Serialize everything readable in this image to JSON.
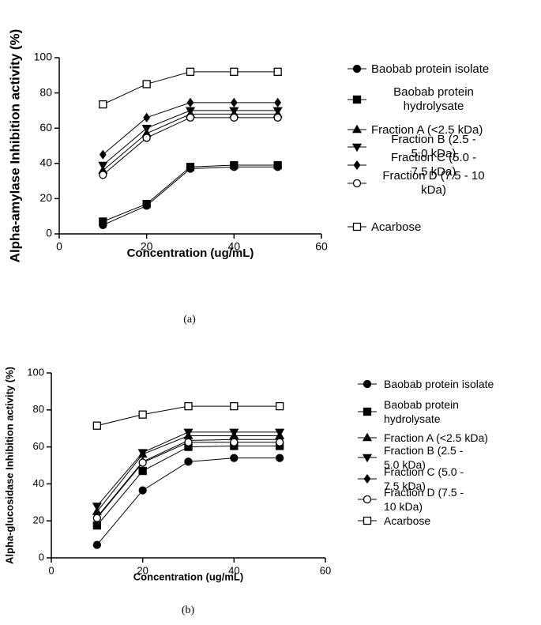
{
  "chart_data": [
    {
      "type": "line",
      "caption": "(a)",
      "x_label": "Concentration (ug/mL)",
      "y_label": "Alpha-amylase Inhibition activity (%)",
      "x": [
        10,
        20,
        30,
        40,
        50
      ],
      "xlim": [
        0,
        60
      ],
      "xticks": [
        0,
        20,
        40,
        60
      ],
      "ylim": [
        0,
        100
      ],
      "yticks": [
        0,
        20,
        40,
        60,
        80,
        100
      ],
      "series": [
        {
          "name": "Baobab protein isolate",
          "color": "#000000",
          "marker": "circle",
          "values": [
            5,
            16,
            37,
            38,
            38
          ]
        },
        {
          "name": "Baobab protein hydrolysate",
          "color": "#000000",
          "marker": "square",
          "values": [
            7,
            17,
            38,
            39,
            39
          ]
        },
        {
          "name": "Fraction A (<2.5 kDa)",
          "color": "#000000",
          "marker": "triangle-up",
          "values": [
            36,
            57,
            68,
            68,
            68
          ]
        },
        {
          "name": "Fraction B (2.5 - 5.0 kDa)",
          "color": "#000000",
          "marker": "triangle-down",
          "values": [
            39,
            60,
            70,
            70,
            70
          ]
        },
        {
          "name": "Fraction C (5.0 - 7.5 kDa)",
          "color": "#000000",
          "marker": "diamond",
          "values": [
            45,
            66,
            74.5,
            74.5,
            74.5
          ]
        },
        {
          "name": "Fraction D (7.5 - 10 kDa)",
          "color": "#000000",
          "marker": "circle-open",
          "values": [
            33.5,
            54.5,
            66,
            66,
            66
          ]
        },
        {
          "name": "Acarbose",
          "color": "#000000",
          "marker": "square-open",
          "values": [
            73.5,
            85,
            92,
            92,
            92
          ]
        }
      ]
    },
    {
      "type": "line",
      "caption": "(b)",
      "x_label": "Concentration (ug/mL)",
      "y_label": "Alpha-glucosidase Inhibition activity (%)",
      "x": [
        10,
        20,
        30,
        40,
        50
      ],
      "xlim": [
        0,
        60
      ],
      "xticks": [
        0,
        20,
        40,
        60
      ],
      "ylim": [
        0,
        100
      ],
      "yticks": [
        0,
        20,
        40,
        60,
        80,
        100
      ],
      "series": [
        {
          "name": "Baobab protein isolate",
          "color": "#000000",
          "marker": "circle",
          "values": [
            7,
            36.5,
            52,
            54,
            54
          ]
        },
        {
          "name": "Baobab protein hydrolysate",
          "color": "#000000",
          "marker": "square",
          "values": [
            17.5,
            47,
            60,
            60.5,
            60.5
          ]
        },
        {
          "name": "Fraction A (<2.5 kDa)",
          "color": "#000000",
          "marker": "triangle-up",
          "values": [
            25,
            56,
            66,
            66,
            66
          ]
        },
        {
          "name": "Fraction B (2.5 - 5.0 kDa)",
          "color": "#000000",
          "marker": "triangle-down",
          "values": [
            28,
            57,
            68,
            68,
            68
          ]
        },
        {
          "name": "Fraction C (5.0 - 7.5 kDa)",
          "color": "#000000",
          "marker": "diamond",
          "values": [
            22,
            52,
            63.5,
            64,
            64
          ]
        },
        {
          "name": "Fraction D (7.5 - 10 kDa)",
          "color": "#000000",
          "marker": "circle-open",
          "values": [
            21.5,
            51.5,
            62.5,
            62.5,
            62.5
          ]
        },
        {
          "name": "Acarbose",
          "color": "#000000",
          "marker": "square-open",
          "values": [
            71.5,
            77.5,
            82,
            82,
            82
          ]
        }
      ]
    }
  ]
}
